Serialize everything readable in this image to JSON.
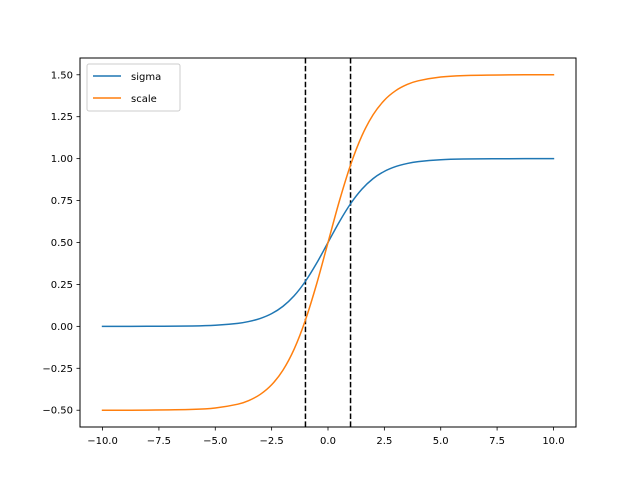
{
  "chart_data": {
    "type": "line",
    "title": "",
    "xlabel": "",
    "ylabel": "",
    "xlim": [
      -11.0,
      11.0
    ],
    "ylim": [
      -0.6,
      1.6
    ],
    "x_ticks": [
      -10.0,
      -7.5,
      -5.0,
      -2.5,
      0.0,
      2.5,
      5.0,
      7.5,
      10.0
    ],
    "x_tick_labels": [
      "−10.0",
      "−7.5",
      "−5.0",
      "−2.5",
      "0.0",
      "2.5",
      "5.0",
      "7.5",
      "10.0"
    ],
    "y_ticks": [
      -0.5,
      -0.25,
      0.0,
      0.25,
      0.5,
      0.75,
      1.0,
      1.25,
      1.5
    ],
    "y_tick_labels": [
      "−0.50",
      "−0.25",
      "0.00",
      "0.25",
      "0.50",
      "0.75",
      "1.00",
      "1.25",
      "1.50"
    ],
    "grid": false,
    "legend_position": "top-left",
    "x": [
      -10.0,
      -8.0,
      -6.0,
      -5.0,
      -4.0,
      -3.5,
      -3.0,
      -2.5,
      -2.0,
      -1.5,
      -1.0,
      -0.5,
      0.0,
      0.5,
      1.0,
      1.5,
      2.0,
      2.5,
      3.0,
      3.5,
      4.0,
      5.0,
      6.0,
      8.0,
      10.0
    ],
    "series": [
      {
        "name": "sigma",
        "color": "#1f77b4",
        "values": [
          0.0,
          0.0003,
          0.0025,
          0.0067,
          0.018,
          0.0293,
          0.0474,
          0.0759,
          0.1192,
          0.1824,
          0.2689,
          0.3775,
          0.5,
          0.6225,
          0.7311,
          0.8176,
          0.8808,
          0.9241,
          0.9526,
          0.9707,
          0.982,
          0.9933,
          0.9975,
          0.9997,
          1.0
        ]
      },
      {
        "name": "scale",
        "color": "#ff7f0e",
        "values": [
          -0.5,
          -0.4993,
          -0.4951,
          -0.4866,
          -0.464,
          -0.4414,
          -0.4051,
          -0.3483,
          -0.2616,
          -0.1353,
          0.0379,
          0.2549,
          0.5,
          0.7451,
          0.9621,
          1.1353,
          1.2616,
          1.3483,
          1.4051,
          1.4414,
          1.464,
          1.4866,
          1.4951,
          1.4993,
          1.5
        ]
      }
    ],
    "vlines": [
      {
        "x": -1.0,
        "style": "dashed",
        "color": "#000000"
      },
      {
        "x": 1.0,
        "style": "dashed",
        "color": "#000000"
      }
    ]
  }
}
